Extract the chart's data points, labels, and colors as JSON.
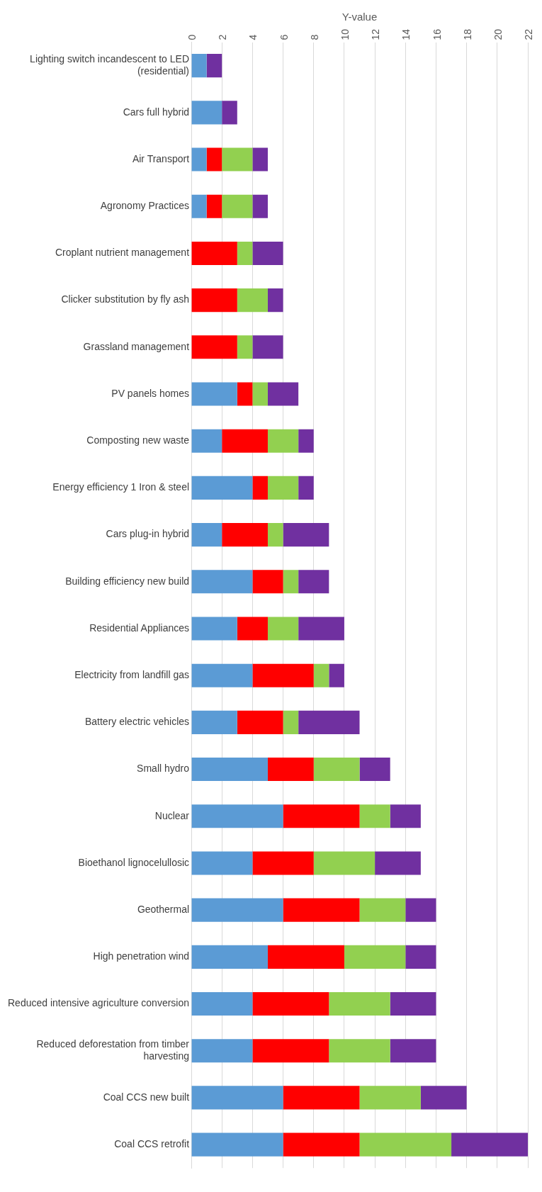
{
  "chart_data": {
    "type": "bar",
    "orientation": "horizontal",
    "stacked": true,
    "xlabel": "Y-value",
    "categories": [
      "Lighting switch incandescent to LED (residential)",
      "Cars full hybrid",
      "Air Transport",
      "Agronomy Practices",
      "Croplant nutrient management",
      "Clicker substitution by fly ash",
      "Grassland management",
      "PV panels homes",
      "Composting new waste",
      "Energy efficiency 1 Iron & steel",
      "Cars plug-in hybrid",
      "Building efficiency new build",
      "Residential Appliances",
      "Electricity from landfill gas",
      "Battery electric vehicles",
      "Small hydro",
      "Nuclear",
      "Bioethanol lignocelullosic",
      "Geothermal",
      "High penetration wind",
      "Reduced intensive agriculture conversion",
      "Reduced deforestation from timber harvesting",
      "Coal CCS new built",
      "Coal CCS retrofit"
    ],
    "series": [
      {
        "color": "#5b9bd5",
        "values": [
          1,
          2,
          1,
          1,
          0,
          0,
          0,
          3,
          2,
          4,
          2,
          4,
          3,
          4,
          3,
          5,
          6,
          4,
          6,
          5,
          4,
          4,
          6,
          6
        ]
      },
      {
        "color": "#ff0000",
        "values": [
          0,
          0,
          1,
          1,
          3,
          3,
          3,
          1,
          3,
          1,
          3,
          2,
          2,
          4,
          3,
          3,
          5,
          4,
          5,
          5,
          5,
          5,
          5,
          5
        ]
      },
      {
        "color": "#92d050",
        "values": [
          0,
          0,
          2,
          2,
          1,
          2,
          1,
          1,
          2,
          2,
          1,
          1,
          2,
          1,
          1,
          3,
          2,
          4,
          3,
          4,
          4,
          4,
          4,
          6
        ]
      },
      {
        "color": "#7030a0",
        "values": [
          1,
          1,
          1,
          1,
          2,
          1,
          2,
          2,
          1,
          1,
          3,
          2,
          3,
          1,
          4,
          2,
          2,
          3,
          2,
          2,
          3,
          3,
          3,
          5
        ]
      }
    ],
    "xlim": [
      0,
      22
    ],
    "xticks": [
      0,
      2,
      4,
      6,
      8,
      10,
      12,
      14,
      16,
      18,
      20,
      22
    ],
    "grid": "x",
    "legend": false
  }
}
